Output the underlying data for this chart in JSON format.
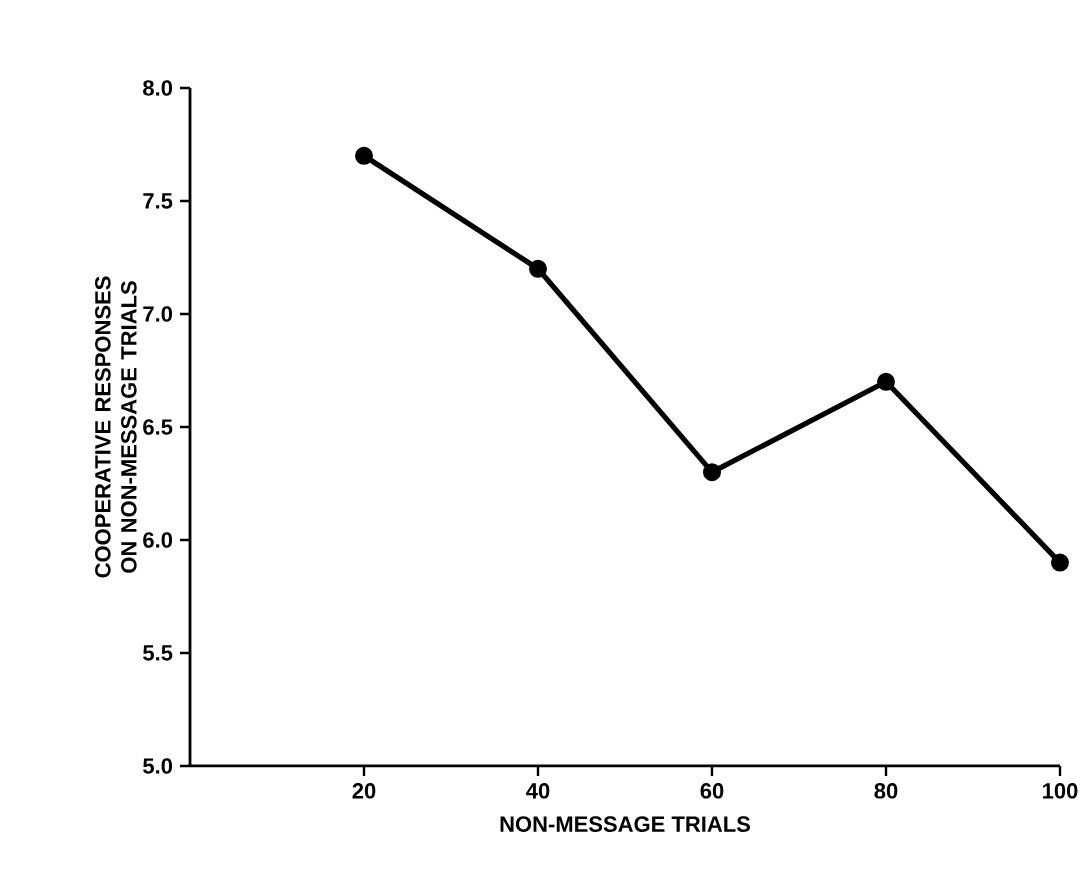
{
  "chart_data": {
    "type": "line",
    "xlabel": "NON-MESSAGE TRIALS",
    "ylabel": "COOPERATIVE RESPONSES ON NON-MESSAGE TRIALS",
    "x": [
      20,
      40,
      60,
      80,
      100
    ],
    "series": [
      {
        "color": "#000000",
        "values": [
          7.7,
          7.2,
          6.3,
          6.7,
          5.9
        ]
      }
    ],
    "xlim": [
      0,
      100
    ],
    "xticks": [
      20,
      40,
      60,
      80,
      100
    ],
    "ylim": [
      5,
      8
    ],
    "yticks": [
      {
        "value": 5,
        "label": "5.0"
      },
      {
        "value": 5.5,
        "label": "5.5"
      },
      {
        "value": 6,
        "label": "6.0"
      },
      {
        "value": 6.5,
        "label": "6.5"
      },
      {
        "value": 7,
        "label": "7.0"
      },
      {
        "value": 7.5,
        "label": "7.5"
      },
      {
        "value": 8,
        "label": "8.0"
      }
    ],
    "marker": "circle",
    "line_style": "solid"
  }
}
